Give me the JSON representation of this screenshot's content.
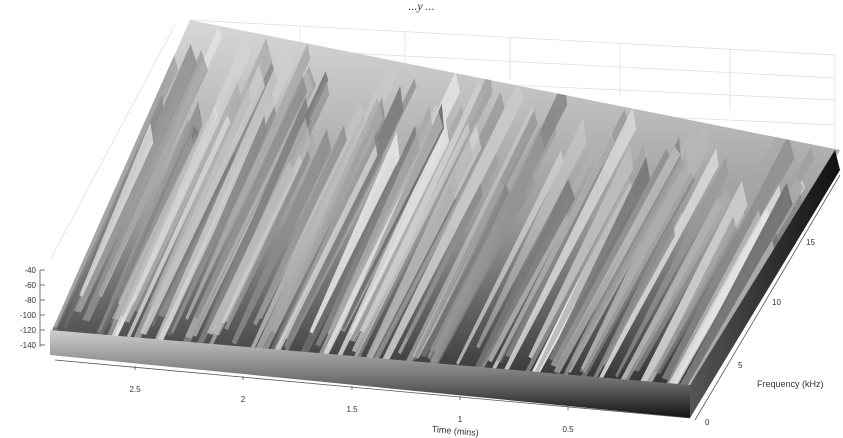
{
  "chart_data": {
    "type": "surface",
    "title": "",
    "title_partial": "...y ...",
    "xlabel": "Time (mins)",
    "ylabel": "Frequency (kHz)",
    "zlabel": "",
    "x_ticks": [
      "2.5",
      "2",
      "1.5",
      "1",
      "0.5"
    ],
    "y_ticks": [
      "0",
      "5",
      "10",
      "15"
    ],
    "z_ticks": [
      "-40",
      "-60",
      "-80",
      "-100",
      "-120",
      "-140"
    ],
    "xlim": [
      0,
      3
    ],
    "ylim": [
      0,
      20
    ],
    "zlim": [
      -150,
      -40
    ],
    "x_direction": "reversed",
    "colormap": "gray",
    "grid": true,
    "description_values": {
      "surface_floor_db": -140,
      "surface_peak_db": -40
    }
  }
}
